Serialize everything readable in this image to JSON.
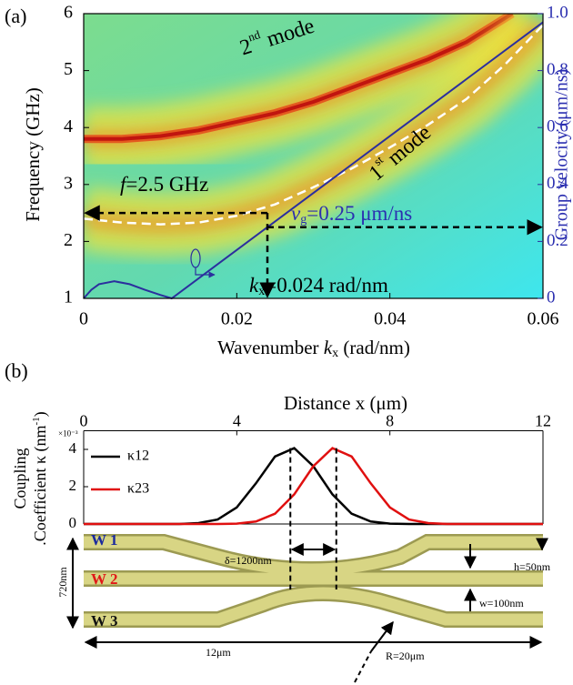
{
  "chart_data": [
    {
      "type": "line",
      "label": "(a)",
      "xlabel": [
        "Wavenumber ",
        "k",
        "x",
        " (rad/nm)"
      ],
      "ylabel": "Frequency (GHz)",
      "y2label": "Group velocity (μm/ns)",
      "xlim": [
        0,
        0.06
      ],
      "xticks": [
        0,
        0.02,
        0.04,
        0.06
      ],
      "ylim": [
        1,
        6
      ],
      "yticks": [
        1,
        2,
        3,
        4,
        5,
        6
      ],
      "y2lim": [
        0,
        1
      ],
      "y2ticks": [
        0,
        0.2,
        0.4,
        0.6,
        0.8,
        {
          "value": 1,
          "label": "1.0"
        }
      ],
      "series": [
        {
          "color": "#c0150f",
          "x": [
            0,
            0.005,
            0.01,
            0.015,
            0.02,
            0.025,
            0.03,
            0.035,
            0.04,
            0.045,
            0.05,
            0.056
          ],
          "values": [
            3.8,
            3.8,
            3.85,
            3.95,
            4.1,
            4.25,
            4.45,
            4.7,
            4.95,
            5.2,
            5.5,
            6
          ]
        },
        {
          "color": "#ffffff",
          "dashed": true,
          "x": [
            0,
            0.005,
            0.01,
            0.015,
            0.02,
            0.025,
            0.03,
            0.035,
            0.04,
            0.045,
            0.05,
            0.055,
            0.06
          ],
          "values": [
            2.4,
            2.33,
            2.3,
            2.33,
            2.45,
            2.65,
            2.95,
            3.28,
            3.65,
            4.05,
            4.5,
            5.1,
            5.8
          ]
        },
        {
          "color": "#2b2f9e",
          "axis": "y2",
          "x": [
            0,
            0.001,
            0.002,
            0.004,
            0.006,
            0.008,
            0.01,
            0.0115,
            0.02,
            0.03,
            0.04,
            0.05,
            0.06
          ],
          "values": [
            0,
            0.03,
            0.05,
            0.06,
            0.05,
            0.03,
            0.012,
            0,
            0.17,
            0.37,
            0.57,
            0.77,
            0.97
          ]
        }
      ],
      "annotations": {
        "mode2": [
          "2",
          "nd",
          " mode"
        ],
        "mode1": [
          "1",
          "st",
          " mode"
        ],
        "f": [
          "f",
          "=2.5 GHz"
        ],
        "vg": [
          "v",
          "g",
          "=0.25 μm/ns"
        ],
        "kx": [
          "k",
          "x",
          "=0.024 rad/nm"
        ]
      },
      "markers": {
        "x": 0.024,
        "y": 2.5,
        "y2": 0.25
      }
    },
    {
      "type": "line",
      "label": "(b)",
      "xlabel": "Distance x (μm)",
      "ylabel": [
        "Coupling",
        ".Coefficient κ (nm",
        "-1",
        ")"
      ],
      "yscale_label": "×10⁻³",
      "xlim": [
        0,
        12
      ],
      "xticks": [
        0,
        4,
        8,
        12
      ],
      "ylim": [
        0,
        5
      ],
      "yticks": [
        0,
        2,
        4
      ],
      "x": [
        0,
        0.5,
        1,
        1.5,
        2,
        2.5,
        3,
        3.5,
        4,
        4.5,
        5,
        5.5,
        6,
        6.5,
        7,
        7.5,
        8,
        8.5,
        9,
        9.5,
        10,
        10.5,
        11,
        11.5,
        12
      ],
      "series": [
        {
          "name": "κ12",
          "color": "#000000",
          "values": [
            0,
            0,
            0,
            0,
            0,
            0,
            0.05,
            0.24,
            0.89,
            2.18,
            3.62,
            4.07,
            3.1,
            1.59,
            0.55,
            0.13,
            0.02,
            0,
            0,
            0,
            0,
            0,
            0,
            0,
            0
          ]
        },
        {
          "name": "κ23",
          "color": "#e01010",
          "values": [
            0,
            0,
            0,
            0,
            0,
            0,
            0,
            0,
            0.02,
            0.13,
            0.55,
            1.59,
            3.1,
            4.07,
            3.62,
            2.18,
            0.89,
            0.24,
            0.05,
            0,
            0,
            0,
            0,
            0,
            0
          ]
        }
      ],
      "dashed_x": [
        5.4,
        6.6
      ]
    }
  ],
  "diagram": {
    "w1": "W 1",
    "w2": "W 2",
    "w3": "W 3",
    "delta": "δ=1200nm",
    "h": "h=50nm",
    "w": "w=100nm",
    "height": "720nm",
    "length": "12μm",
    "radius": "R=20μm"
  }
}
